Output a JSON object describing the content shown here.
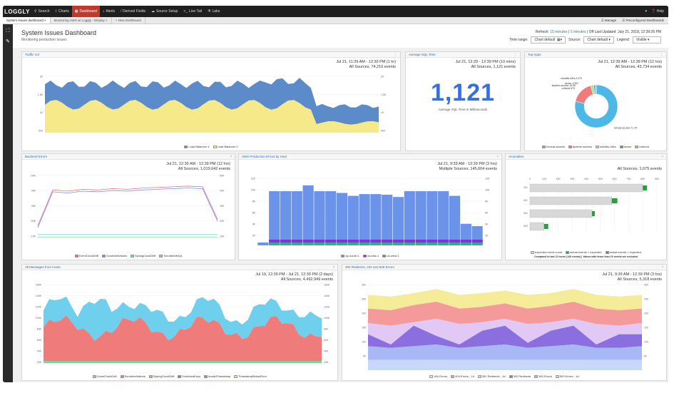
{
  "nav": {
    "logo": "LOGGLY",
    "items": [
      {
        "label": "Search",
        "icon": "search-icon",
        "glyph": "⚲"
      },
      {
        "label": "Charts",
        "icon": "chart-icon",
        "glyph": "⌇"
      },
      {
        "label": "Dashboard",
        "icon": "dashboard-icon",
        "glyph": "▦"
      },
      {
        "label": "Alerts",
        "icon": "bell-icon",
        "glyph": "♪"
      },
      {
        "label": "Derived Fields",
        "icon": "wand-icon",
        "glyph": "⁄"
      },
      {
        "label": "Source Setup",
        "icon": "cloud-icon",
        "glyph": "☁"
      },
      {
        "label": "Live Tail",
        "icon": "terminal-icon",
        "glyph": ">_"
      },
      {
        "label": "Labs",
        "icon": "flask-icon",
        "glyph": "⚗"
      }
    ],
    "active_index": 2,
    "right": [
      "▾",
      "❓ Help"
    ]
  },
  "tabs": {
    "items": [
      "System Issues dashboard",
      "Monitoring AWS w/ Loggly - Display"
    ],
    "new_label": "+ New Dashboard",
    "manage": "☰ Manage",
    "preconfigured": "☰ Preconfigured Dashboards"
  },
  "header": {
    "title": "System Issues Dashboard",
    "subtitle": "Monitoring production issues",
    "refresh_prefix": "Refresh:",
    "refresh_15": "15 minutes",
    "refresh_sep": " | ",
    "refresh_5": "5 minutes",
    "last_updated": "| Off Last Updated: July 21, 2018, 12:39:26 PM",
    "time_range_label": "Time range:",
    "time_range_value": "Chart default",
    "source_label": "Source:",
    "source_value": "Chart default",
    "legend_label": "Legend:",
    "legend_value": "Visible"
  },
  "panels": {
    "traffic": {
      "title": "Traffic Vol",
      "range": "Jul 21, 11:39 AM - 12:39 PM (1 hr)",
      "events": "All Sources, 74,216 events",
      "yticks": [
        "2K",
        "1.5K",
        "1K",
        "500"
      ],
      "legend": [
        "Load Balancer 1",
        "Load Balancer 2"
      ],
      "colors": [
        "#5b8bc9",
        "#f5e98a"
      ]
    },
    "sql": {
      "title": "Average SQL Time",
      "range": "Jul 21, 12:29 - 12:39 PM (10 mins)",
      "events": "All Sources, 1,121 events",
      "value": "1,121",
      "caption": "Average SQL Time in Milliseconds"
    },
    "apps": {
      "title": "Top Apps",
      "range": "Jul 21, 12:39 AM - 12:39 PM (12 hrs)",
      "events": "All Sources, 43,734 events",
      "slice_labels": [
        "tomcat-access 71.7K",
        "apache-access 15.5K",
        "nsealtic-infra 2,070",
        "sensu 1,067",
        "collectd 679"
      ],
      "legend": [
        "tomcat-access",
        "apache-access",
        "nsealtic-infra",
        "sensu",
        "collectd"
      ],
      "colors": [
        "#4db8e8",
        "#f07b7b",
        "#a6e3a1",
        "#5b8bc9",
        "#f5a76a"
      ],
      "values": [
        71.7,
        15.5,
        2.07,
        1.067,
        0.679
      ]
    },
    "backend": {
      "title": "Backend Errors",
      "range": "Jul 21, 12:39 AM - 12:39 PM (12 hrs)",
      "events": "All Sources, 1,019,642 events",
      "yticks": [
        "50K",
        "40K",
        "30K",
        "20K",
        "10K"
      ],
      "legend": [
        "EventClockDrift",
        "ScrubbedValues",
        "SyslogClockDrift",
        "ScrubbedKeys"
      ],
      "colors": [
        "#e8707e",
        "#7a8ef0",
        "#6fd0e0",
        "#7ed39a"
      ]
    },
    "aws": {
      "title": "AWS Production Errors by Host",
      "range": "Jul 21, 9:39 AM - 12:39 PM (3 hrs)",
      "events": "Multiple Sources, 145,604 events",
      "yticks": [
        "12K",
        "10K",
        "8K",
        "6K",
        "4K",
        "2K"
      ],
      "legend": [
        "ap-south-1",
        "us-east-1",
        "us-west-1"
      ],
      "colors": [
        "#6b93ea",
        "#8a2be2",
        "#2bb08a"
      ],
      "values": [
        0.5,
        9.3,
        9.3,
        9.3,
        10.3,
        9.3,
        9.3,
        9.0,
        8.5,
        8.8,
        8.8,
        8.7,
        8.3,
        9.3,
        9.3,
        9.3,
        9.3,
        8.5,
        3.7,
        3.3
      ]
    },
    "anomalies": {
      "title": "Anomalies",
      "events": "All Sources, 1,675 events",
      "xticks": [
        "0",
        "100",
        "200",
        "300",
        "400",
        "500",
        "600",
        "700",
        "800",
        "900"
      ],
      "rows": [
        "301",
        "401",
        "502",
        "503"
      ],
      "expected": [
        800,
        580,
        440,
        100
      ],
      "actual_plus": [
        830,
        620,
        460,
        130
      ],
      "legend": [
        "expected event count",
        "actual events > expected",
        "actual events < expected"
      ],
      "footnote": "Compared to last 12 hours (149 events) | Values with fewer than 10 events are excluded",
      "colors": [
        "#d8d8d8",
        "#2e9d3f",
        "#777777"
      ]
    },
    "messages": {
      "title": "All Messages from Hosts",
      "range": "Jul 19, 12:39 PM - Jul 21, 12:39 PM (2 days)",
      "events": "All Sources, 4,492,949 events",
      "yticks": [
        "160K",
        "140K",
        "120K",
        "100K",
        "80K",
        "60K",
        "40K",
        "20K"
      ],
      "legend": [
        "EventClockDrift",
        "ScrubbedValues",
        "SyslogClockDrift",
        "ScrubbedKeys",
        "InvalidTimestamp",
        "TimestampBelowFloor"
      ],
      "colors": [
        "#6fd0ee",
        "#f07b7b",
        "#7ed39a",
        "#5b8bc9",
        "#e97070",
        "#e0e0a8"
      ]
    },
    "redirects": {
      "title": "302 Redirects, 404 and 500 Errors",
      "range": "Jul 21, 9:39 AM - 12:39 PM (3 hrs)",
      "events": "All Sources, 5,318 events",
      "yticks": [
        "300",
        "250",
        "200",
        "150",
        "100",
        "50"
      ],
      "legend": [
        "404 Errors",
        "404 Errors - 1d",
        "302 Redirects - 1d",
        "302 Redirects",
        "500 Errors",
        "500 Errors - 1d"
      ],
      "colors": [
        "#f5ec9a",
        "#f59a9a",
        "#e2c8f5",
        "#8b6fe0",
        "#a8b8f5",
        "#c8d8fa"
      ]
    }
  }
}
